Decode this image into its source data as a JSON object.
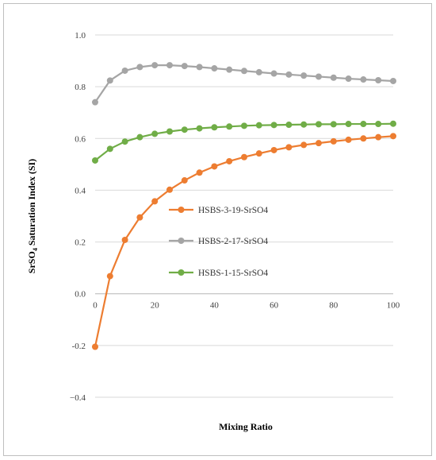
{
  "chart_data": {
    "type": "line",
    "title": "",
    "xlabel": "Mixing Ratio",
    "ylabel_parts": [
      "SrSO",
      "4",
      " Saturation Index (SI)"
    ],
    "xlim": [
      0,
      100
    ],
    "ylim": [
      -0.4,
      1.0
    ],
    "xticks": [
      0,
      20,
      40,
      60,
      80,
      100
    ],
    "yticks": [
      -0.4,
      -0.2,
      0.0,
      0.2,
      0.4,
      0.6,
      0.8,
      1.0
    ],
    "ytick_labels": [
      "−0.4",
      "-0.2",
      "0.0",
      "0.2",
      "0.4",
      "0.6",
      "0.8",
      "1.0"
    ],
    "grid": "horizontal",
    "legend_position": "center-right",
    "x": [
      0,
      5,
      10,
      15,
      20,
      25,
      30,
      35,
      40,
      45,
      50,
      55,
      60,
      65,
      70,
      75,
      80,
      85,
      90,
      95,
      100
    ],
    "series": [
      {
        "name": "HSBS-3-19-SrSO4",
        "color": "#ed7d31",
        "values": [
          -0.205,
          0.068,
          0.208,
          0.295,
          0.357,
          0.402,
          0.438,
          0.468,
          0.492,
          0.512,
          0.528,
          0.542,
          0.555,
          0.566,
          0.575,
          0.582,
          0.589,
          0.595,
          0.6,
          0.605,
          0.609
        ]
      },
      {
        "name": "HSBS-2-17-SrSO4",
        "color": "#a5a5a5",
        "values": [
          0.74,
          0.824,
          0.862,
          0.876,
          0.883,
          0.883,
          0.88,
          0.876,
          0.871,
          0.866,
          0.861,
          0.856,
          0.851,
          0.847,
          0.843,
          0.839,
          0.835,
          0.831,
          0.828,
          0.825,
          0.822
        ]
      },
      {
        "name": "HSBS-1-15-SrSO4",
        "color": "#70ad47",
        "values": [
          0.515,
          0.56,
          0.588,
          0.605,
          0.618,
          0.627,
          0.634,
          0.639,
          0.643,
          0.646,
          0.649,
          0.651,
          0.652,
          0.653,
          0.654,
          0.655,
          0.655,
          0.656,
          0.656,
          0.656,
          0.657
        ]
      }
    ]
  }
}
